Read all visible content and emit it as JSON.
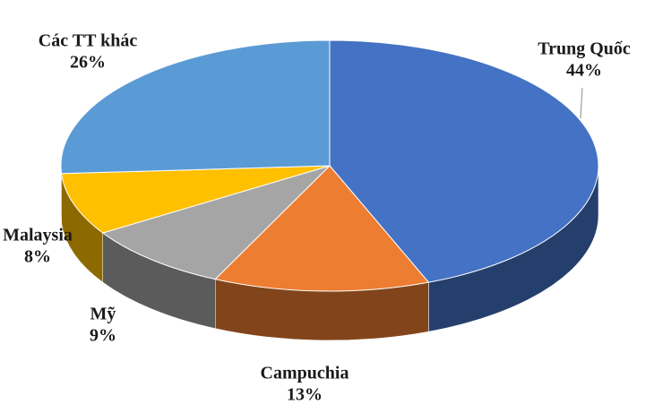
{
  "chart_data": {
    "type": "pie",
    "categories": [
      "Trung Quốc",
      "Campuchia",
      "Mỹ",
      "Malaysia",
      "Các TT khác"
    ],
    "values": [
      44,
      13,
      9,
      8,
      26
    ],
    "value_labels": [
      "44%",
      "13%",
      "9%",
      "8%",
      "26%"
    ],
    "colors": [
      "#4472c4",
      "#ed7d31",
      "#a5a5a5",
      "#ffc000",
      "#5b9bd5"
    ]
  }
}
